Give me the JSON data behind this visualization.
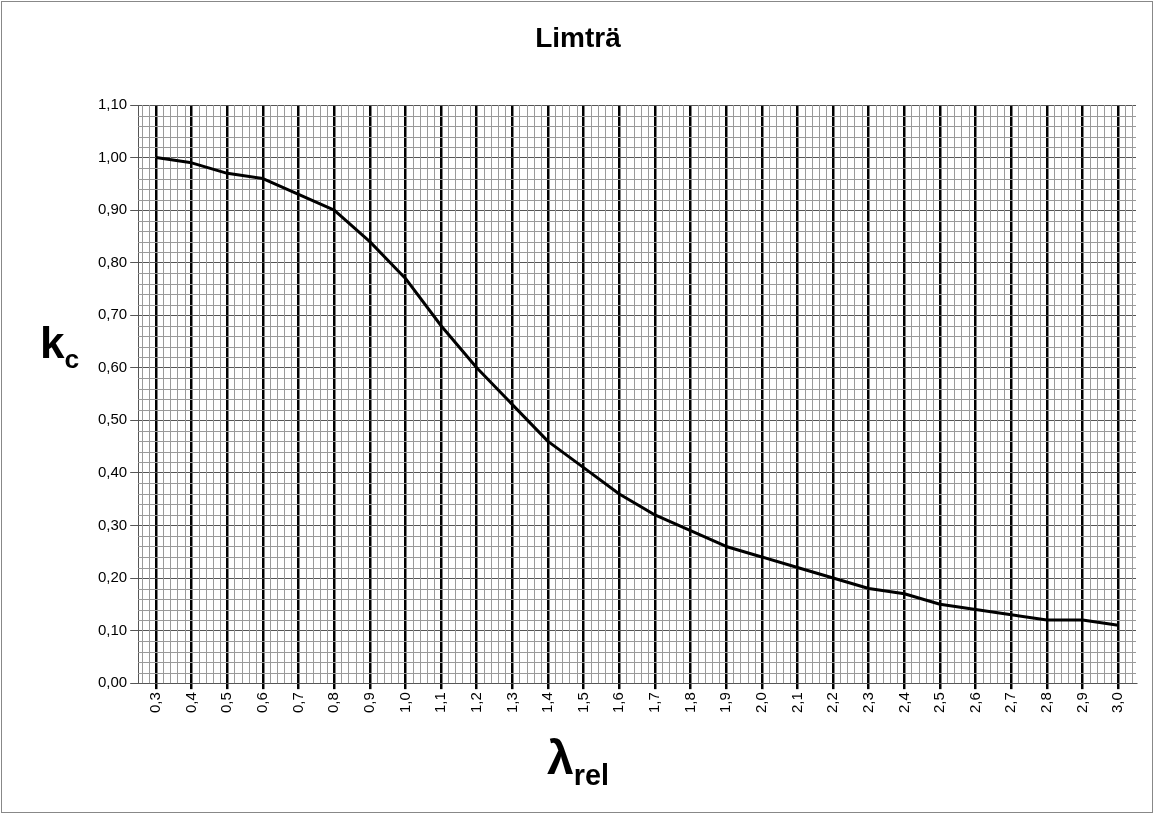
{
  "chart_data": {
    "type": "line",
    "title": "Limträ",
    "xlabel": "λ$_{rel}$",
    "ylabel": "k$_{c}$",
    "categories": [
      "0,3",
      "0,4",
      "0,5",
      "0,6",
      "0,7",
      "0,8",
      "0,9",
      "1,0",
      "1,1",
      "1,2",
      "1,3",
      "1,4",
      "1,5",
      "1,6",
      "1,7",
      "1,8",
      "1,9",
      "2,0",
      "2,1",
      "2,2",
      "2,3",
      "2,4",
      "2,5",
      "2,6",
      "2,7",
      "2,8",
      "2,9",
      "3,0"
    ],
    "series": [
      {
        "color": "#000000",
        "values": [
          1.0,
          0.99,
          0.97,
          0.96,
          0.93,
          0.9,
          0.84,
          0.77,
          0.68,
          0.6,
          0.53,
          0.46,
          0.41,
          0.36,
          0.32,
          0.29,
          0.26,
          0.24,
          0.22,
          0.2,
          0.18,
          0.17,
          0.15,
          0.14,
          0.13,
          0.12,
          0.12,
          0.11
        ]
      }
    ],
    "ylim": [
      0,
      1.1
    ],
    "yticks": [
      {
        "value": 0,
        "label": "0,00"
      },
      {
        "value": 0.1,
        "label": "0,10"
      },
      {
        "value": 0.2,
        "label": "0,20"
      },
      {
        "value": 0.3,
        "label": "0,30"
      },
      {
        "value": 0.4,
        "label": "0,40"
      },
      {
        "value": 0.5,
        "label": "0,50"
      },
      {
        "value": 0.6,
        "label": "0,60"
      },
      {
        "value": 0.7,
        "label": "0,70"
      },
      {
        "value": 0.8,
        "label": "0,80"
      },
      {
        "value": 0.9,
        "label": "0,90"
      },
      {
        "value": 1.0,
        "label": "1,00"
      },
      {
        "value": 1.1,
        "label": "1,10"
      }
    ],
    "grid": true,
    "legend": false,
    "marker": "none",
    "line_style": "solid"
  }
}
